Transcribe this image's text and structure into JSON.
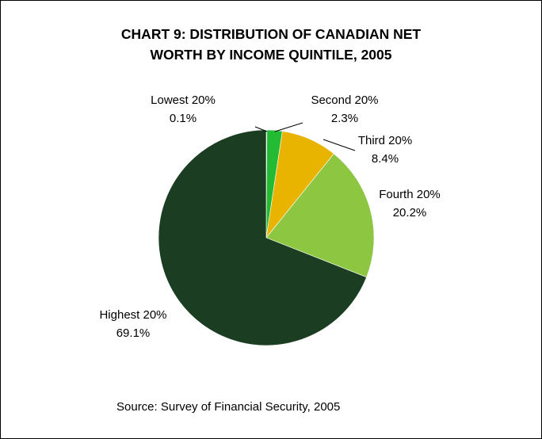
{
  "chart_data": {
    "type": "pie",
    "title_lines": [
      "CHART 9: DISTRIBUTION OF CANADIAN NET",
      "WORTH BY INCOME QUINTILE, 2005"
    ],
    "slices": [
      {
        "label": "Lowest 20%",
        "value": 0.1,
        "value_label": "0.1%",
        "color": "#1f7a2e"
      },
      {
        "label": "Second 20%",
        "value": 2.3,
        "value_label": "2.3%",
        "color": "#22bb33"
      },
      {
        "label": "Third 20%",
        "value": 8.4,
        "value_label": "8.4%",
        "color": "#e8b400"
      },
      {
        "label": "Fourth 20%",
        "value": 20.2,
        "value_label": "20.2%",
        "color": "#8dc641"
      },
      {
        "label": "Highest 20%",
        "value": 69.1,
        "value_label": "69.1%",
        "color": "#1b3d22"
      }
    ],
    "start_angle": "12 o'clock",
    "direction": "clockwise",
    "legend": "none",
    "source": "Source: Survey of Financial Security, 2005"
  }
}
